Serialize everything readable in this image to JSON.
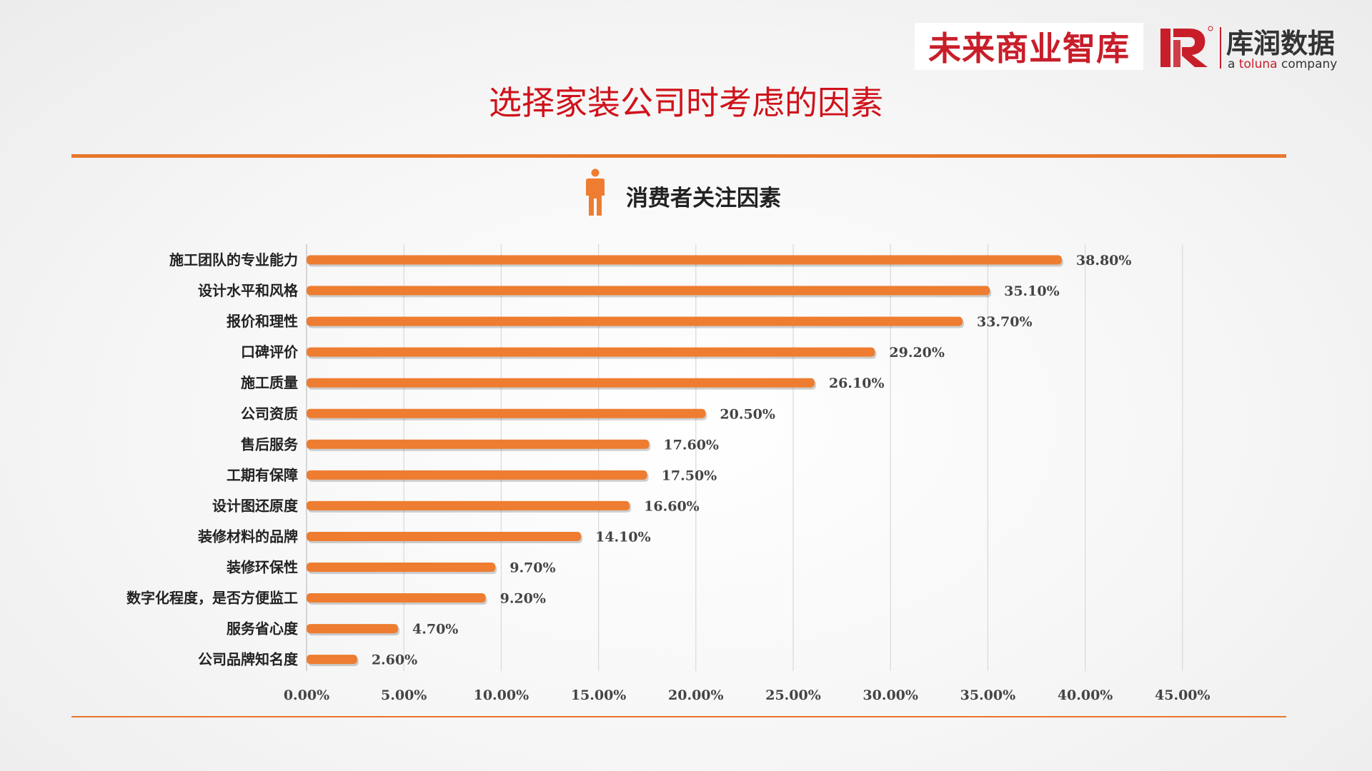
{
  "header": {
    "logo_text": "未来商业智库",
    "brand_name": "库润数据",
    "brand_tagline_prefix": "a ",
    "brand_tagline_highlight": "toluna",
    "brand_tagline_suffix": " company"
  },
  "page_title": "选择家装公司时考虑的因素",
  "chart_title": "消费者关注因素",
  "icons": {
    "person": "person-icon",
    "brand": "kr-logo-icon"
  },
  "colors": {
    "bar": "#ee7d31",
    "accent": "#e8762c",
    "title": "#d0121b",
    "brand": "#c81e2a"
  },
  "chart_data": {
    "type": "bar",
    "orientation": "horizontal",
    "title": "消费者关注因素",
    "xlabel": "",
    "ylabel": "",
    "xlim": [
      0,
      45
    ],
    "x_ticks": [
      0,
      5,
      10,
      15,
      20,
      25,
      30,
      35,
      40,
      45
    ],
    "x_tick_labels": [
      "0.00%",
      "5.00%",
      "10.00%",
      "15.00%",
      "20.00%",
      "25.00%",
      "30.00%",
      "35.00%",
      "40.00%",
      "45.00%"
    ],
    "grid": "vertical",
    "categories": [
      "施工团队的专业能力",
      "设计水平和风格",
      "报价和理性",
      "口碑评价",
      "施工质量",
      "公司资质",
      "售后服务",
      "工期有保障",
      "设计图还原度",
      "装修材料的品牌",
      "装修环保性",
      "数字化程度，是否方便监工",
      "服务省心度",
      "公司品牌知名度"
    ],
    "values": [
      38.8,
      35.1,
      33.7,
      29.2,
      26.1,
      20.5,
      17.6,
      17.5,
      16.6,
      14.1,
      9.7,
      9.2,
      4.7,
      2.6
    ],
    "value_labels": [
      "38.80%",
      "35.10%",
      "33.70%",
      "29.20%",
      "26.10%",
      "20.50%",
      "17.60%",
      "17.50%",
      "16.60%",
      "14.10%",
      "9.70%",
      "9.20%",
      "4.70%",
      "2.60%"
    ]
  }
}
